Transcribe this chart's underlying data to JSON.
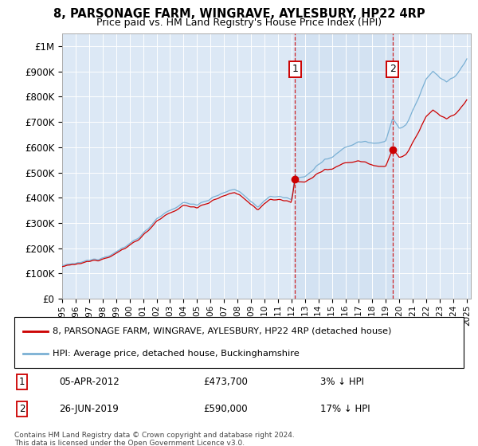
{
  "title": "8, PARSONAGE FARM, WINGRAVE, AYLESBURY, HP22 4RP",
  "subtitle": "Price paid vs. HM Land Registry's House Price Index (HPI)",
  "plot_bg_color": "#dce8f5",
  "ylim": [
    0,
    1050000
  ],
  "yticks": [
    0,
    100000,
    200000,
    300000,
    400000,
    500000,
    600000,
    700000,
    800000,
    900000,
    1000000
  ],
  "ytick_labels": [
    "£0",
    "£100K",
    "£200K",
    "£300K",
    "£400K",
    "£500K",
    "£600K",
    "£700K",
    "£800K",
    "£900K",
    "£1M"
  ],
  "sale1_date": 2012.27,
  "sale1_price": 473700,
  "sale1_label": "1",
  "sale2_date": 2019.5,
  "sale2_price": 590000,
  "sale2_label": "2",
  "property_line_color": "#cc0000",
  "hpi_line_color": "#7ab0d4",
  "shade_color": "#ccddf0",
  "legend_property": "8, PARSONAGE FARM, WINGRAVE, AYLESBURY, HP22 4RP (detached house)",
  "legend_hpi": "HPI: Average price, detached house, Buckinghamshire",
  "annotation1_date": "05-APR-2012",
  "annotation1_price": "£473,700",
  "annotation1_hpi": "3% ↓ HPI",
  "annotation2_date": "26-JUN-2019",
  "annotation2_price": "£590,000",
  "annotation2_hpi": "17% ↓ HPI",
  "footnote": "Contains HM Land Registry data © Crown copyright and database right 2024.\nThis data is licensed under the Open Government Licence v3.0."
}
